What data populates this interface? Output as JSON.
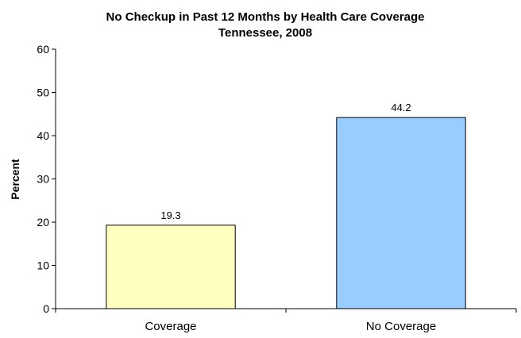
{
  "chart_data": {
    "type": "bar",
    "title": "No Checkup in Past 12 Months by Health Care Coverage",
    "subtitle": "Tennessee, 2008",
    "xlabel": "",
    "ylabel": "Percent",
    "categories": [
      "Coverage",
      "No Coverage"
    ],
    "values": [
      19.3,
      44.2
    ],
    "data_labels": [
      "19.3",
      "44.2"
    ],
    "bar_colors": [
      "#ffffc0",
      "#99ccff"
    ],
    "ylim": [
      0,
      60
    ],
    "yticks": [
      0,
      10,
      20,
      30,
      40,
      50,
      60
    ],
    "grid": false,
    "legend": "none"
  }
}
